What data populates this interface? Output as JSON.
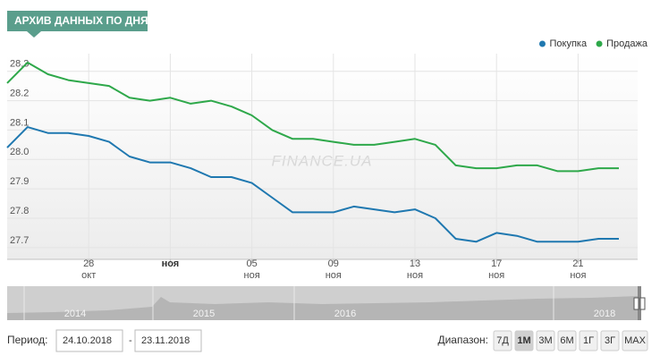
{
  "header": {
    "title": "АРХИВ ДАННЫХ ПО ДНЯМ"
  },
  "chart_data": {
    "type": "line",
    "watermark": "FINANCE.UA",
    "categories": [
      null,
      null,
      null,
      null,
      "28",
      null,
      null,
      null,
      "ноя",
      null,
      null,
      null,
      "05",
      null,
      null,
      null,
      "09",
      null,
      null,
      null,
      "13",
      null,
      null,
      null,
      "17",
      null,
      null,
      null,
      "21",
      null,
      null
    ],
    "category_months": [
      null,
      null,
      null,
      null,
      "окт",
      null,
      null,
      null,
      null,
      null,
      null,
      null,
      "ноя",
      null,
      null,
      null,
      "ноя",
      null,
      null,
      null,
      "ноя",
      null,
      null,
      null,
      "ноя",
      null,
      null,
      null,
      "ноя",
      null,
      null
    ],
    "series": [
      {
        "name": "Покупка",
        "color": "#1f78b0",
        "values": [
          28.04,
          28.11,
          28.09,
          28.09,
          28.08,
          28.06,
          28.01,
          27.99,
          27.99,
          27.97,
          27.94,
          27.94,
          27.92,
          27.87,
          27.82,
          27.82,
          27.82,
          27.84,
          27.83,
          27.82,
          27.83,
          27.8,
          27.73,
          27.72,
          27.75,
          27.74,
          27.72,
          27.72,
          27.72,
          27.73,
          27.73
        ]
      },
      {
        "name": "Продажа",
        "color": "#2ea84a",
        "values": [
          28.26,
          28.33,
          28.29,
          28.27,
          28.26,
          28.25,
          28.21,
          28.2,
          28.21,
          28.19,
          28.2,
          28.18,
          28.15,
          28.1,
          28.07,
          28.07,
          28.06,
          28.05,
          28.05,
          28.06,
          28.07,
          28.05,
          27.98,
          27.97,
          27.97,
          27.98,
          27.98,
          27.96,
          27.96,
          27.97,
          27.97
        ]
      }
    ],
    "ylim": [
      27.66,
      28.36
    ],
    "yticks": [
      27.7,
      27.8,
      27.9,
      {
        "value": 28,
        "label": "28.0"
      },
      28.1,
      28.2,
      28.3
    ],
    "grid": true,
    "legend": "top-right",
    "navigator_labels": [
      "2014",
      "2015",
      "2016",
      "2018"
    ]
  },
  "controls": {
    "period_label": "Период:",
    "date_from": "24.10.2018",
    "separator": "-",
    "date_to": "23.11.2018",
    "range_label": "Диапазон:",
    "range_buttons": [
      "7Д",
      "1М",
      "3М",
      "6М",
      "1Г",
      "3Г",
      "MAX"
    ],
    "active_button": "1М"
  }
}
